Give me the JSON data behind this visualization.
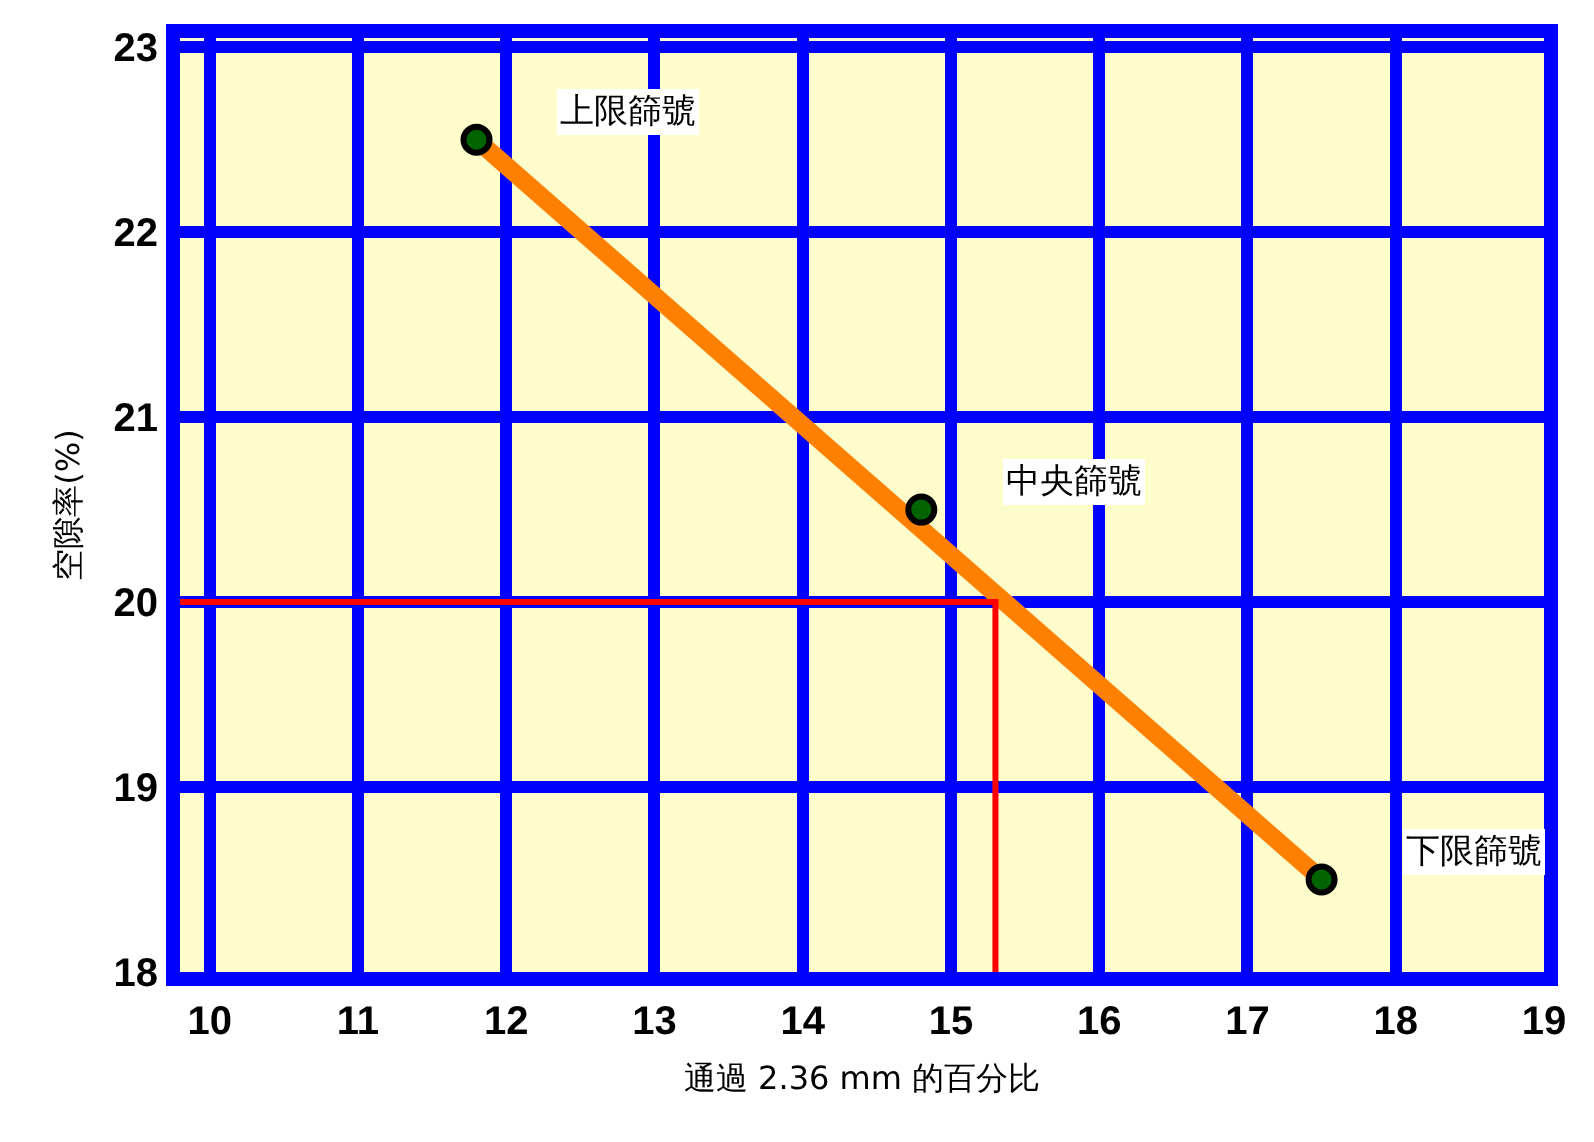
{
  "chart_data": {
    "type": "line",
    "xlabel": "通過 2.36 mm 的百分比",
    "ylabel": "空隙率(%)",
    "xlim": [
      9.8,
      19
    ],
    "xticks": [
      10,
      11,
      12,
      13,
      14,
      15,
      16,
      17,
      18,
      19
    ],
    "ylim": [
      18,
      23.05
    ],
    "yticks": [
      18,
      19,
      20,
      21,
      22,
      23
    ],
    "grid": true,
    "series": [
      {
        "color": "#ff7f00",
        "x": [
          11.8,
          17.5
        ],
        "values": [
          22.5,
          18.5
        ],
        "marker": "none"
      },
      {
        "type": "scatter",
        "color": "#006400",
        "x": [
          11.8,
          14.8,
          17.5
        ],
        "values": [
          22.5,
          20.5,
          18.5
        ],
        "marker": "circle"
      },
      {
        "color": "#ff0000",
        "x": [
          9.8,
          15.3,
          15.3
        ],
        "values": [
          20,
          20,
          18
        ],
        "marker": "none"
      }
    ],
    "annotations": [
      {
        "text": "上限篩號",
        "x": 11.8,
        "y": 22.5
      },
      {
        "text": "中央篩號",
        "x": 14.8,
        "y": 20.5
      },
      {
        "text": "下限篩號",
        "x": 17.5,
        "y": 18.5
      }
    ]
  }
}
